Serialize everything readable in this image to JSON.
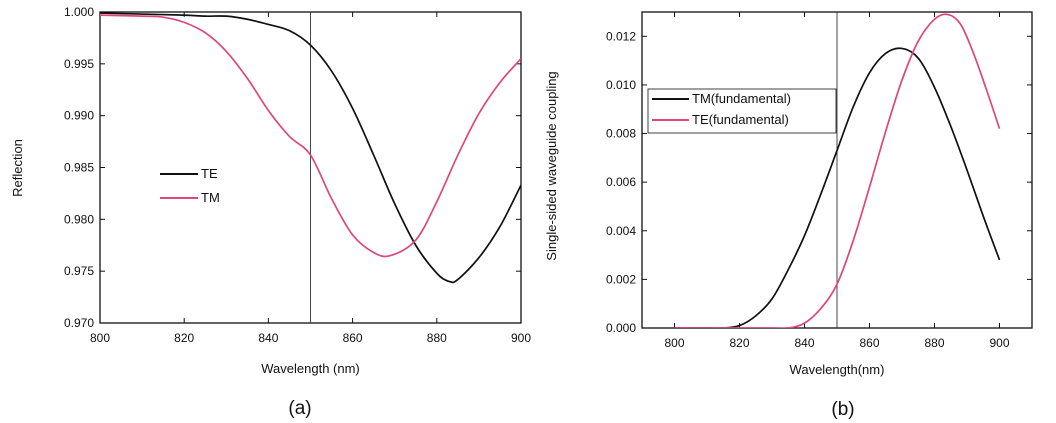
{
  "chart_data": [
    {
      "type": "line",
      "panel_label": "(a)",
      "xlabel": "Wavelength (nm)",
      "ylabel": "Reflection",
      "xlim": [
        800,
        900
      ],
      "ylim": [
        0.97,
        1.0
      ],
      "xticks": [
        "800",
        "820",
        "840",
        "860",
        "880",
        "900"
      ],
      "yticks": [
        "0.970",
        "0.975",
        "0.980",
        "0.985",
        "0.990",
        "0.995",
        "1.000"
      ],
      "grid": false,
      "legend_position": "left-center",
      "reference_line_x": 850,
      "series": [
        {
          "name": "TE",
          "color": "#111111",
          "x": [
            800,
            810,
            820,
            825,
            830,
            835,
            840,
            845,
            850,
            855,
            860,
            865,
            870,
            875,
            880,
            883,
            885,
            890,
            895,
            900
          ],
          "y": [
            0.9999,
            0.9998,
            0.9997,
            0.9996,
            0.9996,
            0.9993,
            0.9988,
            0.9982,
            0.9968,
            0.9943,
            0.9907,
            0.9862,
            0.9815,
            0.9775,
            0.9748,
            0.974,
            0.9742,
            0.9763,
            0.9793,
            0.9833
          ]
        },
        {
          "name": "TM",
          "color": "#e0457b",
          "x": [
            800,
            810,
            815,
            820,
            825,
            830,
            835,
            840,
            845,
            850,
            855,
            860,
            865,
            869,
            875,
            880,
            885,
            890,
            895,
            900
          ],
          "y": [
            0.9997,
            0.9996,
            0.9995,
            0.999,
            0.998,
            0.9962,
            0.9936,
            0.9905,
            0.988,
            0.9862,
            0.982,
            0.9785,
            0.9768,
            0.9765,
            0.978,
            0.9817,
            0.9862,
            0.9902,
            0.9932,
            0.9955
          ]
        }
      ]
    },
    {
      "type": "line",
      "panel_label": "(b)",
      "xlabel": "Wavelength(nm)",
      "ylabel": "Single-sided waveguide coupling",
      "xlim": [
        790,
        910
      ],
      "ylim": [
        0.0,
        0.013
      ],
      "xticks": [
        "800",
        "820",
        "840",
        "860",
        "880",
        "900"
      ],
      "yticks": [
        "0.000",
        "0.002",
        "0.004",
        "0.006",
        "0.008",
        "0.010",
        "0.012"
      ],
      "grid": false,
      "legend_position": "top-left",
      "reference_line_x": 850,
      "series": [
        {
          "name": "TM(fundamental)",
          "color": "#111111",
          "x": [
            800,
            810,
            815,
            820,
            825,
            830,
            835,
            840,
            845,
            850,
            855,
            860,
            865,
            870,
            875,
            880,
            885,
            890,
            895,
            900
          ],
          "y": [
            0.0,
            0.0,
            0.0,
            0.0001,
            0.0005,
            0.0012,
            0.0024,
            0.0038,
            0.0055,
            0.0073,
            0.0091,
            0.0105,
            0.0113,
            0.0115,
            0.0111,
            0.0099,
            0.0083,
            0.0065,
            0.0046,
            0.0028
          ]
        },
        {
          "name": "TE(fundamental)",
          "color": "#e0457b",
          "x": [
            800,
            820,
            830,
            835,
            840,
            845,
            850,
            855,
            860,
            865,
            870,
            875,
            880,
            884,
            888,
            892,
            896,
            900
          ],
          "y": [
            0.0,
            0.0,
            0.0,
            0.0,
            0.0002,
            0.0008,
            0.0018,
            0.0036,
            0.0058,
            0.0081,
            0.0102,
            0.0118,
            0.0127,
            0.0129,
            0.0125,
            0.0113,
            0.0098,
            0.0082
          ]
        }
      ]
    }
  ]
}
